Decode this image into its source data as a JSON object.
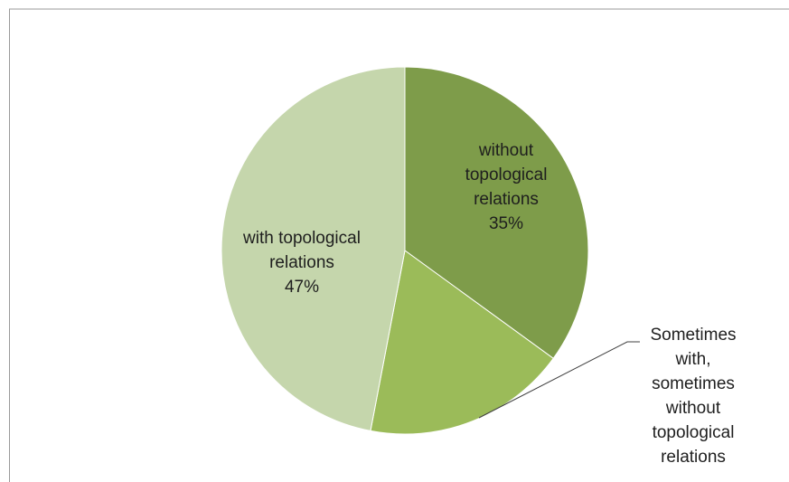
{
  "chart_data": {
    "type": "pie",
    "slices": [
      {
        "label_lines": [
          "without",
          "topological",
          "relations"
        ],
        "value": 35,
        "value_label": "35%",
        "color": "#7e9c4a"
      },
      {
        "label_lines": [
          "Sometimes",
          "with,",
          "sometimes",
          "without",
          "topological",
          "relations"
        ],
        "value": 18,
        "value_label": "",
        "color": "#9bbb59"
      },
      {
        "label_lines": [
          "with topological",
          "relations"
        ],
        "value": 47,
        "value_label": "47%",
        "color": "#c5d6ac"
      }
    ],
    "start_angle": "12 o'clock",
    "direction": "clockwise",
    "legend": "none"
  }
}
